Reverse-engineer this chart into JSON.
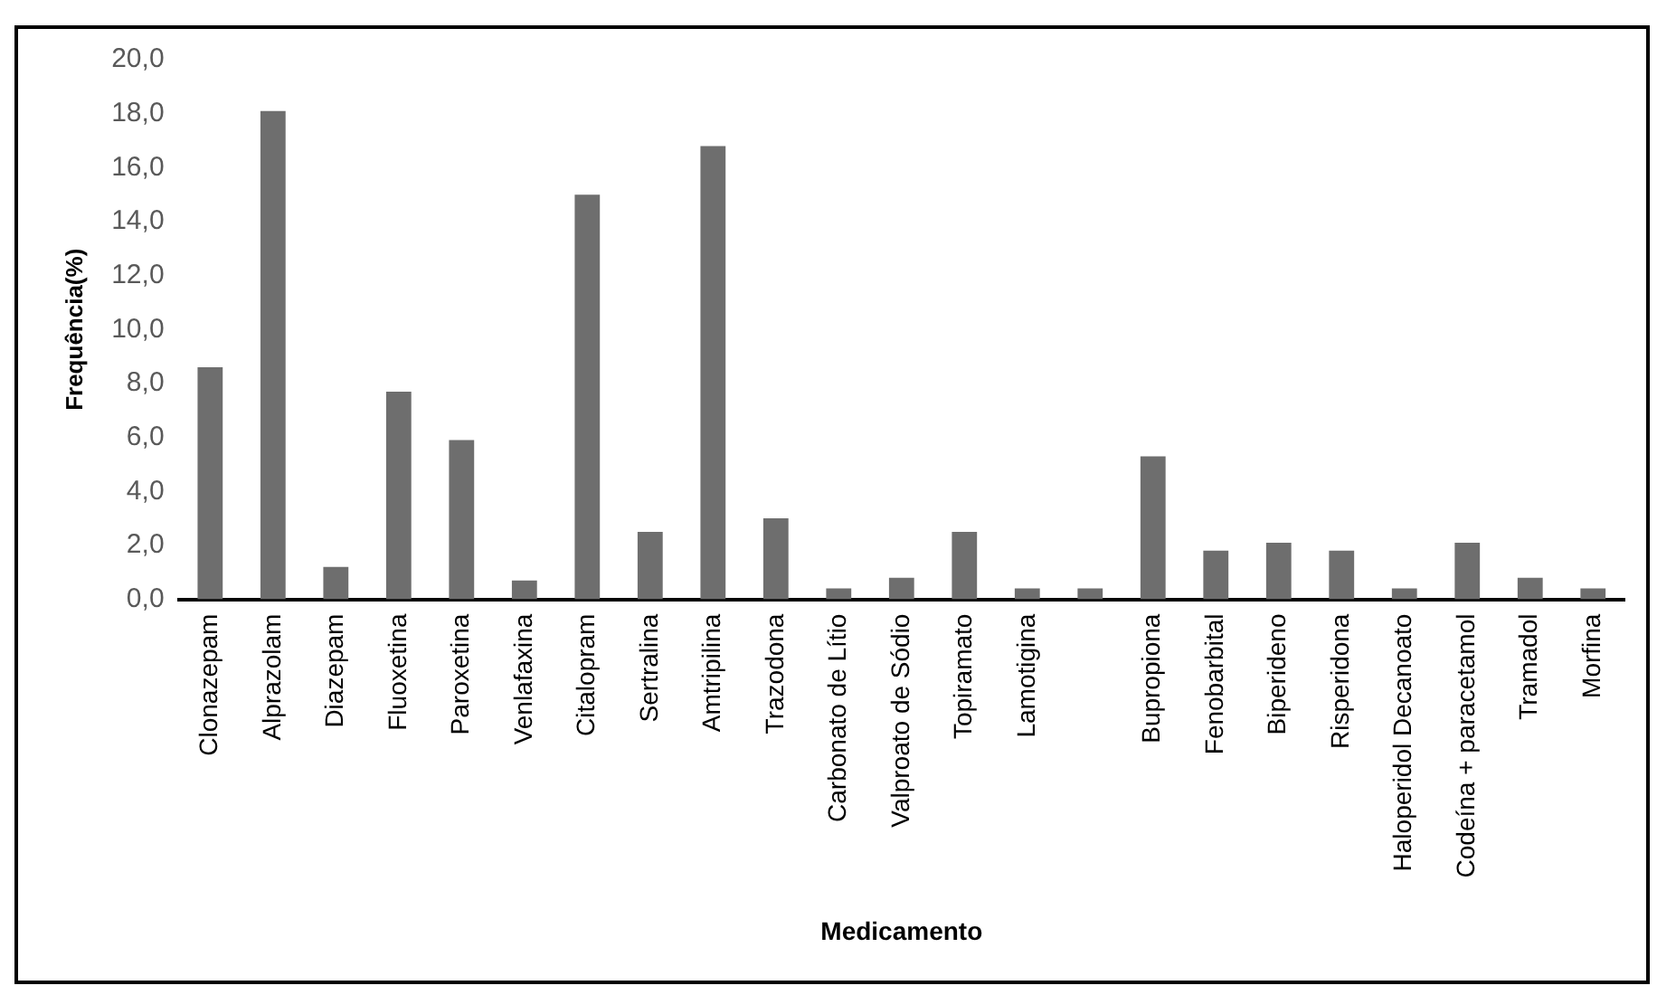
{
  "chart_data": {
    "type": "bar",
    "xlabel": "Medicamento",
    "ylabel": "Frequência(%)",
    "categories": [
      "Clonazepam",
      "Alprazolam",
      "Diazepam",
      "Fluoxetina",
      "Paroxetina",
      "Venlafaxina",
      "Citalopram",
      "Sertralina",
      "Amtripilina",
      "Trazodona",
      "Carbonato de Lítio",
      "Valproato de Sódio",
      "Topiramato",
      "Lamotigina",
      null,
      "Bupropiona",
      "Fenobarbital",
      "Biperideno",
      "Risperidona",
      "Haloperidol Decanoato",
      "Codeína + paracetamol",
      "Tramadol",
      "Morfina"
    ],
    "values": [
      8.6,
      18.1,
      1.2,
      7.7,
      5.9,
      0.7,
      15.0,
      2.5,
      16.8,
      3.0,
      0.4,
      0.8,
      2.5,
      0.4,
      0.4,
      5.3,
      1.8,
      2.1,
      1.8,
      0.4,
      2.1,
      0.8,
      0.4
    ],
    "color": "#6e6e6e",
    "ylim": [
      0,
      20
    ],
    "yticks": [
      {
        "value": 0,
        "label": "0,0"
      },
      {
        "value": 2,
        "label": "2,0"
      },
      {
        "value": 4,
        "label": "4,0"
      },
      {
        "value": 6,
        "label": "6,0"
      },
      {
        "value": 8,
        "label": "8,0"
      },
      {
        "value": 10,
        "label": "10,0"
      },
      {
        "value": 12,
        "label": "12,0"
      },
      {
        "value": 14,
        "label": "14,0"
      },
      {
        "value": 16,
        "label": "16,0"
      },
      {
        "value": 18,
        "label": "18,0"
      },
      {
        "value": 20,
        "label": "20,0"
      }
    ],
    "grid": false,
    "legend": false
  }
}
